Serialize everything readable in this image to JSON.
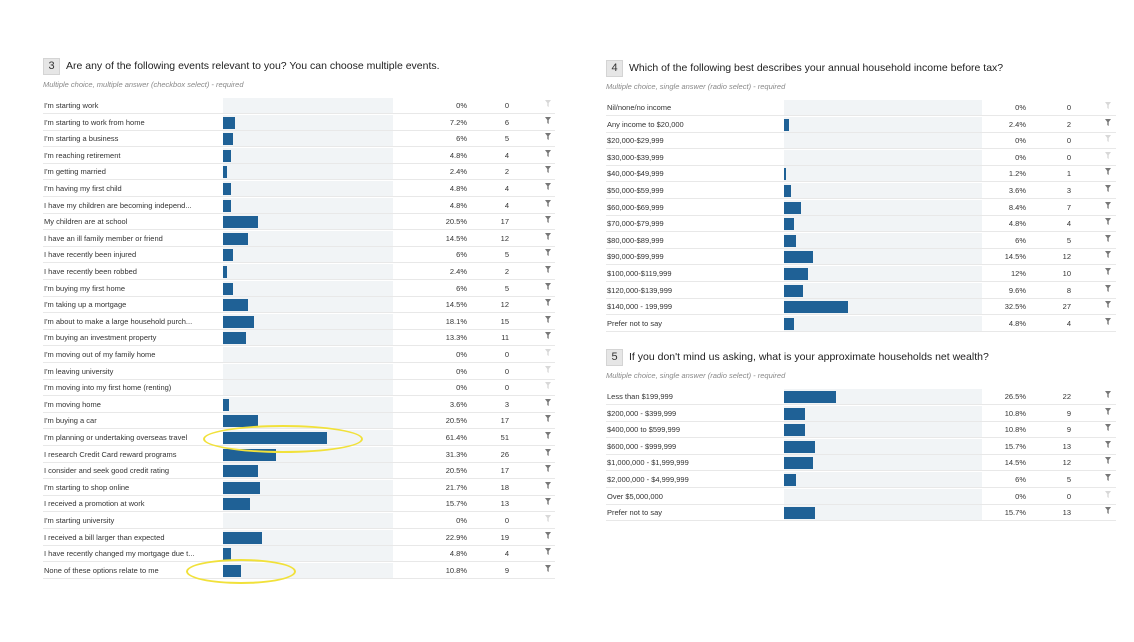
{
  "chart_data": [
    {
      "type": "bar",
      "number": "3",
      "title": "Are any of the following events relevant to you? You can choose multiple events.",
      "subtitle": "Multiple choice, multiple answer (checkbox select) - required",
      "categories": [
        "I'm starting work",
        "I'm starting to work from home",
        "I'm starting a business",
        "I'm reaching retirement",
        "I'm getting married",
        "I'm having my first child",
        "I have my children are becoming independ...",
        "My children are at school",
        "I have an ill family member or friend",
        "I have recently been injured",
        "I have recently been robbed",
        "I'm buying my first home",
        "I'm taking up a mortgage",
        "I'm about to make a large household purch...",
        "I'm buying an investment property",
        "I'm moving out of my family home",
        "I'm leaving university",
        "I'm moving into my first home (renting)",
        "I'm moving home",
        "I'm buying a car",
        "I'm planning or undertaking overseas travel",
        "I research Credit Card reward programs",
        "I consider and seek good credit rating",
        "I'm starting to shop online",
        "I received a promotion at work",
        "I'm starting university",
        "I received a bill larger than expected",
        "I have recently changed my mortgage due t...",
        "None of these options relate to me"
      ],
      "values": [
        0,
        7.2,
        6,
        4.8,
        2.4,
        4.8,
        4.8,
        20.5,
        14.5,
        6,
        2.4,
        6,
        14.5,
        18.1,
        13.3,
        0,
        0,
        0,
        3.6,
        20.5,
        61.4,
        31.3,
        20.5,
        21.7,
        15.7,
        0,
        22.9,
        4.8,
        10.8
      ],
      "percent_labels": [
        "0%",
        "7.2%",
        "6%",
        "4.8%",
        "2.4%",
        "4.8%",
        "4.8%",
        "20.5%",
        "14.5%",
        "6%",
        "2.4%",
        "6%",
        "14.5%",
        "18.1%",
        "13.3%",
        "0%",
        "0%",
        "0%",
        "3.6%",
        "20.5%",
        "61.4%",
        "31.3%",
        "20.5%",
        "21.7%",
        "15.7%",
        "0%",
        "22.9%",
        "4.8%",
        "10.8%"
      ],
      "counts": [
        0,
        6,
        5,
        4,
        2,
        4,
        4,
        17,
        12,
        5,
        2,
        5,
        12,
        15,
        11,
        0,
        0,
        0,
        3,
        17,
        51,
        26,
        17,
        18,
        13,
        0,
        19,
        4,
        9
      ],
      "highlighted": [
        "I'm planning or undertaking overseas travel",
        "None of these options relate to me"
      ],
      "xlim": [
        0,
        100
      ]
    },
    {
      "type": "bar",
      "number": "4",
      "title": "Which of the following best describes your annual household income before tax?",
      "subtitle": "Multiple choice, single answer (radio select) - required",
      "categories": [
        "Nil/none/no income",
        "Any income to $20,000",
        "$20,000-$29,999",
        "$30,000-$39,999",
        "$40,000-$49,999",
        "$50,000-$59,999",
        "$60,000-$69,999",
        "$70,000-$79,999",
        "$80,000-$89,999",
        "$90,000-$99,999",
        "$100,000-$119,999",
        "$120,000-$139,999",
        "$140,000 - 199,999",
        "Prefer not to say"
      ],
      "values": [
        0,
        2.4,
        0,
        0,
        1.2,
        3.6,
        8.4,
        4.8,
        6,
        14.5,
        12,
        9.6,
        32.5,
        4.8
      ],
      "percent_labels": [
        "0%",
        "2.4%",
        "0%",
        "0%",
        "1.2%",
        "3.6%",
        "8.4%",
        "4.8%",
        "6%",
        "14.5%",
        "12%",
        "9.6%",
        "32.5%",
        "4.8%"
      ],
      "counts": [
        0,
        2,
        0,
        0,
        1,
        3,
        7,
        4,
        5,
        12,
        10,
        8,
        27,
        4
      ],
      "xlim": [
        0,
        100
      ]
    },
    {
      "type": "bar",
      "number": "5",
      "title": "If you don't mind us asking, what is your approximate households net wealth?",
      "subtitle": "Multiple choice, single answer (radio select) - required",
      "categories": [
        "Less than $199,999",
        "$200,000 - $399,999",
        "$400,000 to $599,999",
        "$600,000 - $999,999",
        "$1,000,000 - $1,999,999",
        "$2,000,000 - $4,999,999",
        "Over $5,000,000",
        "Prefer not to say"
      ],
      "values": [
        26.5,
        10.8,
        10.8,
        15.7,
        14.5,
        6,
        0,
        15.7
      ],
      "percent_labels": [
        "26.5%",
        "10.8%",
        "10.8%",
        "15.7%",
        "14.5%",
        "6%",
        "0%",
        "15.7%"
      ],
      "counts": [
        22,
        9,
        9,
        13,
        12,
        5,
        0,
        13
      ],
      "xlim": [
        0,
        100
      ]
    }
  ],
  "icons": {
    "filter": "filter-icon"
  },
  "colors": {
    "bar": "#1f6196",
    "track": "#f1f4f6",
    "highlight": "#f1e13a"
  }
}
